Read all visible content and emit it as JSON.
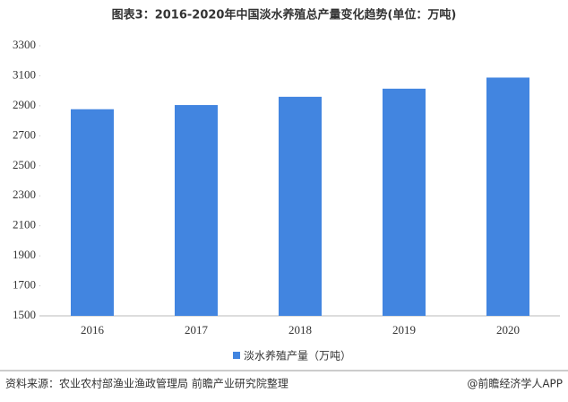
{
  "chart_data": {
    "type": "bar",
    "title": "图表3：2016-2020年中国淡水养殖总产量变化趋势(单位：万吨)",
    "categories": [
      "2016",
      "2017",
      "2018",
      "2019",
      "2020"
    ],
    "series": [
      {
        "name": "淡水养殖产量（万吨）",
        "color": "#4285e0",
        "values": [
          2877,
          2905,
          2960,
          3014,
          3088
        ]
      }
    ],
    "ylim": [
      1500,
      3300
    ],
    "yticks": [
      1500,
      1700,
      1900,
      2100,
      2300,
      2500,
      2700,
      2900,
      3100,
      3300
    ],
    "grid": false,
    "legend": "bottom",
    "source": "资料来源：农业农村部渔业渔政管理局 前瞻产业研究院整理",
    "brand": "@前瞻经济学人APP"
  }
}
